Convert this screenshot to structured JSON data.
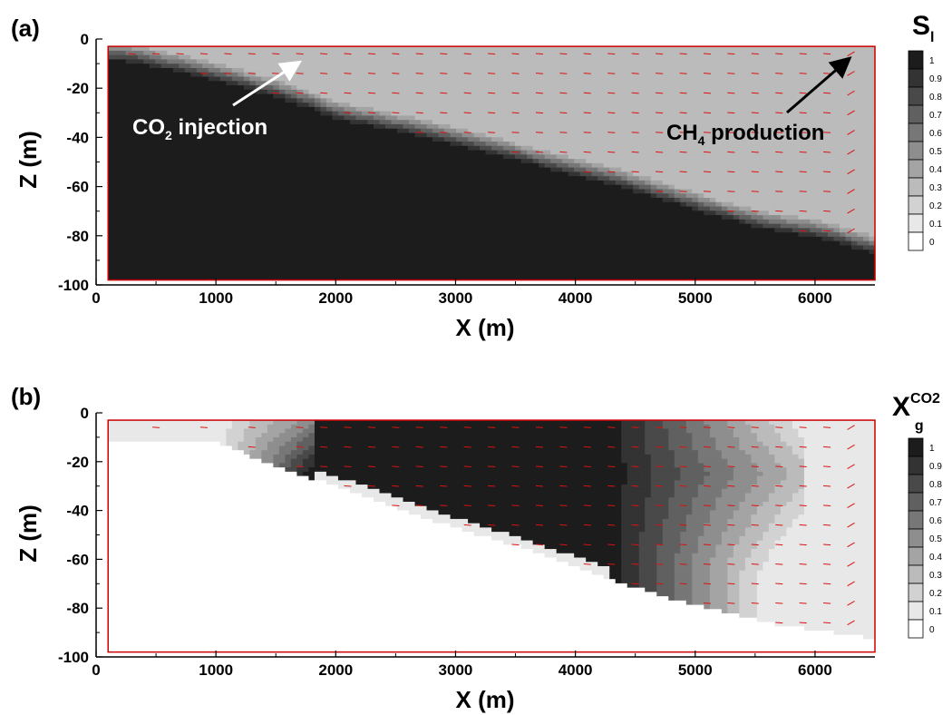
{
  "figure": {
    "colors": {
      "frame": "#cc0000",
      "vector": "#dd1111",
      "dark": "#1c1c1c",
      "light_gray": "#ababab",
      "pale": "#e8e8e8"
    }
  },
  "chart_data": [
    {
      "type": "heatmap",
      "panel_label": "(a)",
      "xlabel": "X (m)",
      "ylabel": "Z (m)",
      "xlim": [
        0,
        6500
      ],
      "ylim": [
        -100,
        0
      ],
      "x_ticks": [
        0,
        1000,
        2000,
        3000,
        4000,
        5000,
        6000
      ],
      "y_ticks": [
        0,
        -20,
        -40,
        -60,
        -80,
        -100
      ],
      "colorbar": {
        "title_main": "S",
        "title_sub": "l",
        "levels": [
          "1",
          "0.9",
          "0.8",
          "0.7",
          "0.6",
          "0.5",
          "0.4",
          "0.3",
          "0.2",
          "0.1",
          "0"
        ]
      },
      "annotations": [
        {
          "name": "co2-injection",
          "text_main": "CO",
          "text_sub": "2",
          "text_rest": " injection",
          "arrow_color": "#ffffff"
        },
        {
          "name": "ch4-production",
          "text_main": "CH",
          "text_sub": "4",
          "text_rest": " production",
          "arrow_color": "#000000"
        }
      ],
      "interface_profile": {
        "x": [
          100,
          300,
          600,
          900,
          1200,
          1500,
          1800,
          2000,
          2400,
          2800,
          3200,
          3600,
          4000,
          4400,
          4800,
          5200,
          5600,
          6000,
          6300,
          6500
        ],
        "z": [
          -5,
          -6,
          -9,
          -12,
          -16,
          -20,
          -25,
          -29,
          -33,
          -37,
          -42,
          -47,
          -52,
          -57,
          -63,
          -69,
          -74,
          -77,
          -81,
          -84
        ]
      },
      "saturation_above": 0.3,
      "saturation_below": 1.0,
      "transition_width_m": 8
    },
    {
      "type": "heatmap",
      "panel_label": "(b)",
      "xlabel": "X (m)",
      "ylabel": "Z (m)",
      "xlim": [
        0,
        6500
      ],
      "ylim": [
        -100,
        0
      ],
      "x_ticks": [
        0,
        1000,
        2000,
        3000,
        4000,
        5000,
        6000
      ],
      "y_ticks": [
        0,
        -20,
        -40,
        -60,
        -80,
        -100
      ],
      "colorbar": {
        "title_main": "X",
        "title_sup": "CO2",
        "title_sub": "g",
        "levels": [
          "1",
          "0.9",
          "0.8",
          "0.7",
          "0.6",
          "0.5",
          "0.4",
          "0.3",
          "0.2",
          "0.1",
          "0"
        ]
      },
      "gas_boundary": {
        "x": [
          0,
          1000,
          1300,
          1600,
          2000,
          2400,
          2800,
          3200,
          3600,
          4000,
          4400,
          4800,
          5200,
          5600,
          6000,
          6400,
          6500
        ],
        "z": [
          -12,
          -12,
          -18,
          -24,
          -30,
          -37,
          -44,
          -50,
          -56,
          -63,
          -70,
          -76,
          -81,
          -86,
          -89,
          -92,
          -93
        ]
      },
      "plume_front": {
        "x_upper": [
          1800,
          4200,
          4300
        ],
        "x_lower_z": [
          -10,
          -30,
          -50
        ],
        "outer_front_x": 5900,
        "inner_front_x": 4300,
        "tail_x": 1000
      },
      "background_value": 0.08
    }
  ]
}
